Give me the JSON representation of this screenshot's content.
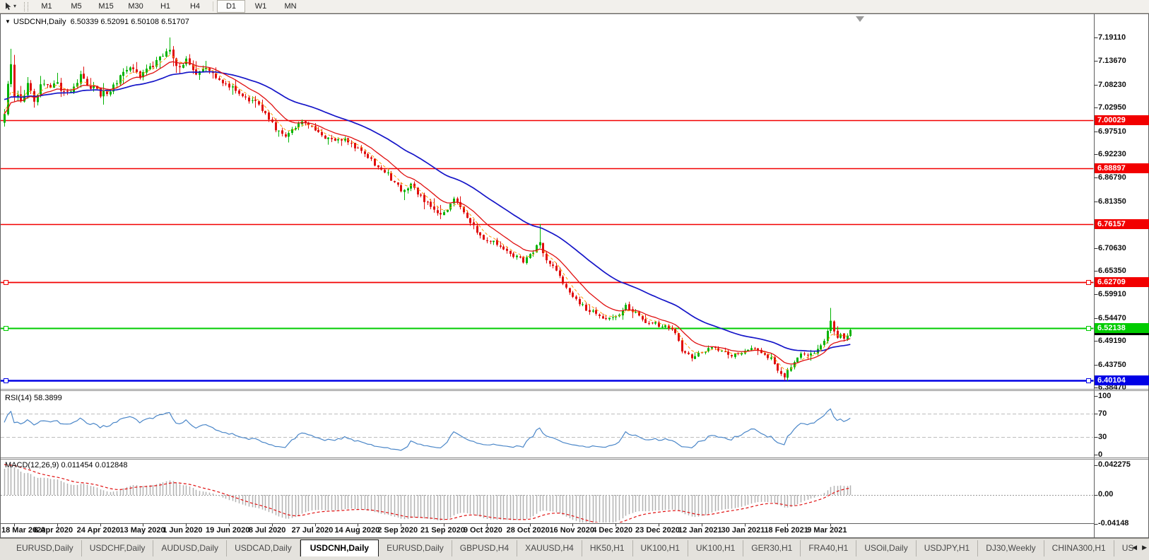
{
  "toolbar": {
    "timeframes": [
      "M1",
      "M5",
      "M15",
      "M30",
      "H1",
      "H4",
      "D1",
      "W1",
      "MN"
    ],
    "active_timeframe": "D1"
  },
  "chart": {
    "symbol_period": "USDCNH,Daily",
    "ohlc_string": "6.50339 6.52091 6.50108 6.51707",
    "open": "6.50339",
    "high": "6.52091",
    "low": "6.50108",
    "close": "6.51707"
  },
  "price_axis": {
    "ticks": [
      "7.19110",
      "7.13670",
      "7.08230",
      "7.02950",
      "6.97510",
      "6.92230",
      "6.86790",
      "6.81350",
      "6.70630",
      "6.65350",
      "6.59910",
      "6.54470",
      "6.49190",
      "6.43750",
      "6.38470"
    ],
    "lines": [
      {
        "label": "7.00029",
        "value": 7.00029,
        "color": "#f20000",
        "kind": "resistance",
        "width": 1.5,
        "selected": false
      },
      {
        "label": "6.88897",
        "value": 6.88897,
        "color": "#f20000",
        "kind": "resistance",
        "width": 1.5,
        "selected": false
      },
      {
        "label": "6.76157",
        "value": 6.76157,
        "color": "#f20000",
        "kind": "resistance",
        "width": 1.5,
        "selected": false
      },
      {
        "label": "6.62709",
        "value": 6.62709,
        "color": "#f20000",
        "kind": "resistance",
        "width": 1.8,
        "selected": true
      },
      {
        "label": "6.52138",
        "value": 6.52138,
        "color": "#00cc00",
        "kind": "support",
        "width": 2.0,
        "selected": true
      },
      {
        "label": "6.40104",
        "value": 6.40104,
        "color": "#0000e6",
        "kind": "support",
        "width": 2.4,
        "selected": true
      }
    ],
    "current_price": {
      "label": "6.51707",
      "value": 6.51707,
      "color": "#000000"
    }
  },
  "date_axis": [
    "18 Mar 2020",
    "6 Apr 2020",
    "24 Apr 2020",
    "13 May 2020",
    "1 Jun 2020",
    "19 Jun 2020",
    "8 Jul 2020",
    "27 Jul 2020",
    "14 Aug 2020",
    "2 Sep 2020",
    "21 Sep 2020",
    "9 Oct 2020",
    "28 Oct 2020",
    "16 Nov 2020",
    "4 Dec 2020",
    "23 Dec 2020",
    "12 Jan 2021",
    "30 Jan 2021",
    "18 Feb 2021",
    "9 Mar 2021"
  ],
  "rsi": {
    "title": "RSI(14)",
    "value": "58.3899",
    "ticks": [
      {
        "label": "100",
        "v": 100
      },
      {
        "label": "70",
        "v": 70
      },
      {
        "label": "30",
        "v": 30
      },
      {
        "label": "0",
        "v": 0
      }
    ],
    "levels": [
      70,
      30
    ],
    "line_color": "#4a86c8"
  },
  "macd": {
    "title": "MACD(12,26,9)",
    "values": "0.011454 0.012848",
    "ticks": [
      {
        "label": "0.042275",
        "v": 0.042275
      },
      {
        "label": "0.00",
        "v": 0
      },
      {
        "label": "-0.04148",
        "v": -0.04148
      }
    ],
    "histogram_color": "#b2b2b2",
    "signal_color": "#e01010"
  },
  "tabs": {
    "items": [
      "EURUSD,Daily",
      "USDCHF,Daily",
      "AUDUSD,Daily",
      "USDCAD,Daily",
      "USDCNH,Daily",
      "EURUSD,Daily",
      "GBPUSD,H4",
      "XAUUSD,H4",
      "HK50,H1",
      "UK100,H1",
      "UK100,H1",
      "GER30,H1",
      "FRA40,H1",
      "USOil,Daily",
      "USDJPY,H1",
      "DJ30,Weekly",
      "CHINA300,H1",
      "USO"
    ],
    "active_index": 4
  },
  "chart_data": {
    "type": "candlestick",
    "symbol": "USDCNH",
    "timeframe": "Daily",
    "x_range": [
      "18 Mar 2020",
      "17 Mar 2021"
    ],
    "y_range": [
      6.3847,
      7.245
    ],
    "horizontal_levels": [
      7.00029,
      6.88897,
      6.76157,
      6.62709,
      6.52138,
      6.40104
    ],
    "candle_count": 257,
    "last_candle": {
      "open": 6.50339,
      "high": 6.52091,
      "low": 6.50108,
      "close": 6.51707
    },
    "price_path_anchors": [
      [
        0,
        7.02
      ],
      [
        1,
        7.09
      ],
      [
        2,
        7.13
      ],
      [
        3,
        7.06
      ],
      [
        5,
        7.04
      ],
      [
        7,
        7.08
      ],
      [
        9,
        7.05
      ],
      [
        12,
        7.09
      ],
      [
        14,
        7.07
      ],
      [
        16,
        7.09
      ],
      [
        18,
        7.06
      ],
      [
        20,
        7.07
      ],
      [
        23,
        7.1
      ],
      [
        26,
        7.08
      ],
      [
        29,
        7.06
      ],
      [
        32,
        7.07
      ],
      [
        35,
        7.1
      ],
      [
        38,
        7.12
      ],
      [
        41,
        7.1
      ],
      [
        44,
        7.12
      ],
      [
        47,
        7.14
      ],
      [
        50,
        7.16
      ],
      [
        52,
        7.12
      ],
      [
        55,
        7.14
      ],
      [
        58,
        7.11
      ],
      [
        61,
        7.12
      ],
      [
        64,
        7.1
      ],
      [
        67,
        7.08
      ],
      [
        70,
        7.07
      ],
      [
        73,
        7.05
      ],
      [
        76,
        7.04
      ],
      [
        79,
        7.02
      ],
      [
        82,
        6.98
      ],
      [
        85,
        6.965
      ],
      [
        88,
        6.985
      ],
      [
        91,
        7.0
      ],
      [
        94,
        6.98
      ],
      [
        97,
        6.96
      ],
      [
        100,
        6.95
      ],
      [
        103,
        6.955
      ],
      [
        106,
        6.94
      ],
      [
        109,
        6.92
      ],
      [
        112,
        6.9
      ],
      [
        115,
        6.885
      ],
      [
        118,
        6.855
      ],
      [
        120,
        6.84
      ],
      [
        123,
        6.85
      ],
      [
        127,
        6.815
      ],
      [
        130,
        6.79
      ],
      [
        133,
        6.785
      ],
      [
        136,
        6.82
      ],
      [
        138,
        6.8
      ],
      [
        142,
        6.755
      ],
      [
        145,
        6.72
      ],
      [
        148,
        6.725
      ],
      [
        151,
        6.7
      ],
      [
        154,
        6.69
      ],
      [
        157,
        6.675
      ],
      [
        160,
        6.7
      ],
      [
        162,
        6.715
      ],
      [
        164,
        6.68
      ],
      [
        167,
        6.65
      ],
      [
        170,
        6.61
      ],
      [
        173,
        6.585
      ],
      [
        176,
        6.565
      ],
      [
        179,
        6.555
      ],
      [
        182,
        6.545
      ],
      [
        185,
        6.545
      ],
      [
        188,
        6.575
      ],
      [
        191,
        6.555
      ],
      [
        194,
        6.535
      ],
      [
        197,
        6.53
      ],
      [
        200,
        6.525
      ],
      [
        203,
        6.51
      ],
      [
        205,
        6.47
      ],
      [
        208,
        6.455
      ],
      [
        211,
        6.465
      ],
      [
        214,
        6.475
      ],
      [
        217,
        6.47
      ],
      [
        220,
        6.46
      ],
      [
        223,
        6.465
      ],
      [
        226,
        6.475
      ],
      [
        229,
        6.465
      ],
      [
        232,
        6.45
      ],
      [
        234,
        6.425
      ],
      [
        236,
        6.41
      ],
      [
        238,
        6.435
      ],
      [
        240,
        6.455
      ],
      [
        242,
        6.465
      ],
      [
        244,
        6.46
      ],
      [
        246,
        6.47
      ],
      [
        248,
        6.49
      ],
      [
        250,
        6.535
      ],
      [
        251,
        6.515
      ],
      [
        252,
        6.5
      ],
      [
        253,
        6.505
      ],
      [
        254,
        6.5
      ],
      [
        255,
        6.508
      ],
      [
        256,
        6.517
      ]
    ],
    "spikes": [
      {
        "i": 2,
        "high": 7.165
      },
      {
        "i": 50,
        "high": 7.191
      },
      {
        "i": 162,
        "high": 6.7613
      },
      {
        "i": 236,
        "low": 6.401
      },
      {
        "i": 250,
        "high": 6.568
      }
    ],
    "up_color": "#00b300",
    "down_color": "#e00d0d",
    "ma_slow_color": "#1515c8",
    "ma_fast_color": "#e01010",
    "ma_dash_color": "#ff9900"
  }
}
